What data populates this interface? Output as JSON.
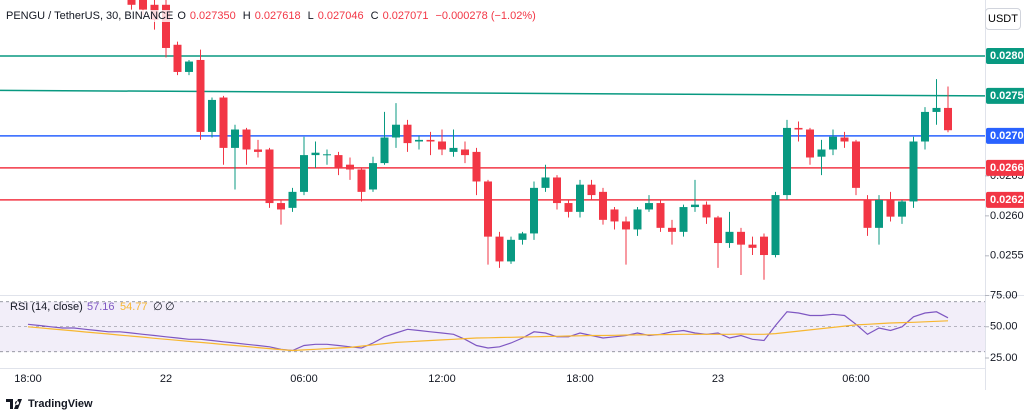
{
  "chart_data": [
    {
      "type": "candlestick",
      "title": "PENGU / TetherUS, 30, BINANCE",
      "currency": "USDT",
      "quote": [
        {
          "key": "O",
          "value": 0.02735,
          "label": "0.027350"
        },
        {
          "key": "H",
          "value": 0.027618,
          "label": "0.027618"
        },
        {
          "key": "L",
          "value": 0.027046,
          "label": "0.027046"
        },
        {
          "key": "C",
          "value": 0.027071,
          "label": "0.027071"
        }
      ],
      "change": "−0.000278 (−1.02%)",
      "categories": [
        "18:00",
        null,
        null,
        null,
        null,
        null,
        null,
        null,
        null,
        null,
        null,
        null,
        "22",
        null,
        null,
        null,
        null,
        null,
        null,
        null,
        null,
        null,
        null,
        null,
        "06:00",
        null,
        null,
        null,
        null,
        null,
        null,
        null,
        null,
        null,
        null,
        null,
        "12:00",
        null,
        null,
        null,
        null,
        null,
        null,
        null,
        null,
        null,
        null,
        null,
        "18:00",
        null,
        null,
        null,
        null,
        null,
        null,
        null,
        null,
        null,
        null,
        null,
        "23",
        null,
        null,
        null,
        null,
        null,
        null,
        null,
        null,
        null,
        null,
        null,
        "06:00",
        null,
        null,
        null,
        null,
        null,
        null,
        null,
        null
      ],
      "open": [
        null,
        null,
        null,
        null,
        null,
        null,
        null,
        null,
        null,
        0.0287,
        0.0287,
        0.02864,
        0.02864,
        0.02814,
        0.0278,
        0.02795,
        0.02705,
        0.02748,
        0.02685,
        0.02708,
        0.02683,
        0.02683,
        0.02616,
        0.0261,
        0.0263,
        0.02676,
        0.02676,
        0.02676,
        0.02664,
        0.02658,
        0.02633,
        0.02666,
        0.02698,
        0.02714,
        0.02693,
        0.02695,
        0.02693,
        0.0268,
        0.02683,
        0.0268,
        0.02643,
        0.02574,
        0.02543,
        0.0257,
        0.02578,
        0.02635,
        0.02648,
        0.02616,
        0.02605,
        0.02639,
        0.0263,
        0.02608,
        0.02593,
        0.02583,
        0.02608,
        0.02616,
        0.02585,
        0.0258,
        0.02611,
        0.02614,
        0.02598,
        0.02566,
        0.0258,
        0.02564,
        0.02574,
        0.02551,
        0.02626,
        0.0271,
        0.02708,
        0.02674,
        0.02683,
        0.02698,
        0.02693,
        0.0262,
        0.02585,
        0.0262,
        0.02599,
        0.02618,
        0.02693,
        0.0273,
        0.02735
      ],
      "high": [
        null,
        null,
        null,
        null,
        null,
        null,
        null,
        null,
        null,
        0.0287,
        0.0287,
        0.0287,
        0.0287,
        0.02818,
        0.02795,
        0.02808,
        0.02748,
        0.0275,
        0.02714,
        0.0271,
        0.02695,
        0.02685,
        0.0262,
        0.02635,
        0.02699,
        0.02693,
        0.02683,
        0.0268,
        0.02673,
        0.0266,
        0.02674,
        0.0273,
        0.02741,
        0.0272,
        0.027,
        0.02705,
        0.02708,
        0.02708,
        0.02693,
        0.02685,
        0.02645,
        0.0258,
        0.02574,
        0.0258,
        0.02643,
        0.02664,
        0.02651,
        0.0262,
        0.02645,
        0.02645,
        0.02635,
        0.02611,
        0.02599,
        0.02611,
        0.02626,
        0.0262,
        0.02595,
        0.02614,
        0.02645,
        0.02618,
        0.026,
        0.02605,
        0.02585,
        0.02574,
        0.02578,
        0.0263,
        0.0272,
        0.02718,
        0.0271,
        0.02695,
        0.02708,
        0.02705,
        0.02695,
        0.02626,
        0.02626,
        0.0263,
        0.0262,
        0.02699,
        0.02736,
        0.02771,
        0.027618
      ],
      "low": [
        null,
        null,
        null,
        null,
        null,
        null,
        null,
        null,
        null,
        0.02858,
        0.02851,
        0.02833,
        0.02798,
        0.02776,
        0.02776,
        0.02695,
        0.02698,
        0.02664,
        0.02633,
        0.02664,
        0.02673,
        0.0261,
        0.02589,
        0.02605,
        0.02626,
        0.0266,
        0.02664,
        0.02651,
        0.02645,
        0.02618,
        0.0263,
        0.02664,
        0.02685,
        0.0268,
        0.02683,
        0.02676,
        0.02676,
        0.02674,
        0.02666,
        0.02626,
        0.02539,
        0.02535,
        0.0254,
        0.02564,
        0.0257,
        0.0263,
        0.02608,
        0.02598,
        0.02598,
        0.0262,
        0.02589,
        0.02583,
        0.02539,
        0.02575,
        0.02605,
        0.0258,
        0.02564,
        0.02574,
        0.02605,
        0.0259,
        0.02535,
        0.0256,
        0.02526,
        0.02551,
        0.0252,
        0.02548,
        0.0262,
        0.02693,
        0.02664,
        0.02651,
        0.02676,
        0.02685,
        0.02626,
        0.02575,
        0.02564,
        0.02593,
        0.0259,
        0.0261,
        0.02683,
        0.02714,
        0.027046
      ],
      "close": [
        null,
        null,
        null,
        null,
        null,
        null,
        null,
        null,
        null,
        0.02864,
        0.02858,
        0.02845,
        0.0281,
        0.0278,
        0.02793,
        0.02705,
        0.02745,
        0.02685,
        0.02708,
        0.02683,
        0.0268,
        0.02616,
        0.02608,
        0.0263,
        0.02676,
        0.02679,
        0.02677,
        0.0266,
        0.02658,
        0.0263,
        0.02666,
        0.02698,
        0.02714,
        0.02691,
        0.02695,
        0.02693,
        0.02683,
        0.02685,
        0.02676,
        0.02643,
        0.02574,
        0.02543,
        0.0257,
        0.02578,
        0.02635,
        0.02648,
        0.02616,
        0.02605,
        0.02639,
        0.02626,
        0.02595,
        0.02593,
        0.02583,
        0.02608,
        0.02616,
        0.02585,
        0.0258,
        0.02611,
        0.02614,
        0.02598,
        0.02566,
        0.0258,
        0.02564,
        0.0256,
        0.02551,
        0.02626,
        0.0271,
        0.02708,
        0.02673,
        0.02683,
        0.02699,
        0.02693,
        0.02635,
        0.02585,
        0.0262,
        0.02599,
        0.02618,
        0.02693,
        0.0273,
        0.02735,
        0.027071
      ],
      "up_color": "#089981",
      "down_color": "#f23645",
      "ylim": [
        0.02501,
        0.0287
      ],
      "yticks": [
        {
          "value": 0.0255,
          "label": "0.02550"
        },
        {
          "value": 0.026,
          "label": "0.02600"
        },
        {
          "value": 0.0265,
          "label": "0.02650"
        }
      ],
      "levels": [
        {
          "value": 0.028,
          "label": "0.02800",
          "color": "#089981"
        },
        {
          "value": 0.027,
          "label": "0.02700",
          "color": "#2962ff"
        },
        {
          "value": 0.0266,
          "label": "0.02660",
          "color": "#f23645"
        },
        {
          "value": 0.0262,
          "label": "0.02620",
          "color": "#f23645"
        }
      ],
      "trendline": {
        "start": 0.02757,
        "end": 0.0275,
        "label": "0.02750",
        "color": "#089981"
      },
      "grid": false
    },
    {
      "type": "line",
      "title": "RSI (14, close)",
      "series": [
        {
          "color": "#7e57c2",
          "values": [
            52,
            51,
            50,
            49,
            49,
            48,
            47,
            46,
            46,
            45,
            44,
            43,
            42,
            41,
            40,
            40,
            39,
            38,
            37,
            36,
            35,
            34,
            32,
            31,
            35,
            36,
            36,
            35,
            34,
            33,
            37,
            42,
            45,
            48,
            47,
            46,
            45,
            44,
            40,
            35,
            33,
            34,
            37,
            41,
            46,
            45,
            42,
            42,
            45,
            43,
            41,
            42,
            43,
            45,
            43,
            44,
            46,
            47,
            45,
            44,
            45,
            41,
            43,
            40,
            39,
            51,
            62,
            61,
            59,
            59,
            60,
            59,
            52,
            44,
            49,
            47,
            50,
            58,
            61,
            62,
            57.16
          ]
        },
        {
          "color": "#f7b731",
          "values": [
            50,
            49.2,
            48.3,
            47.5,
            46.7,
            45.8,
            45,
            44.2,
            43.3,
            42.5,
            41.7,
            40.8,
            40,
            39.2,
            38.3,
            37.5,
            36.7,
            35.8,
            35,
            34.2,
            33.3,
            32.5,
            31.7,
            31,
            31.5,
            32,
            32.5,
            33,
            33.5,
            34.5,
            35.5,
            36.5,
            37.5,
            38,
            38.5,
            39,
            39.5,
            40,
            40.5,
            41,
            41.2,
            41.4,
            41.6,
            41.8,
            42,
            42.2,
            42.4,
            42.6,
            42.8,
            43,
            43,
            43.2,
            43.4,
            43.5,
            43.6,
            43.7,
            43.8,
            44,
            44,
            44,
            44,
            44,
            44.2,
            44,
            44,
            44.5,
            45.5,
            46.5,
            47.5,
            48.5,
            49.5,
            50.5,
            51.5,
            52,
            52.5,
            53,
            53.3,
            53.6,
            54,
            54.4,
            54.77
          ]
        }
      ],
      "legend_extras": [
        "∅",
        "∅"
      ],
      "ylim": [
        17,
        81
      ],
      "yticks": [
        {
          "value": 75,
          "label": "75.00"
        },
        {
          "value": 50,
          "label": "50.00"
        },
        {
          "value": 25,
          "label": "25.00"
        }
      ],
      "band": [
        30,
        70
      ],
      "band_color": "#7e57c2"
    }
  ],
  "footer": {
    "brand": "TradingView"
  }
}
